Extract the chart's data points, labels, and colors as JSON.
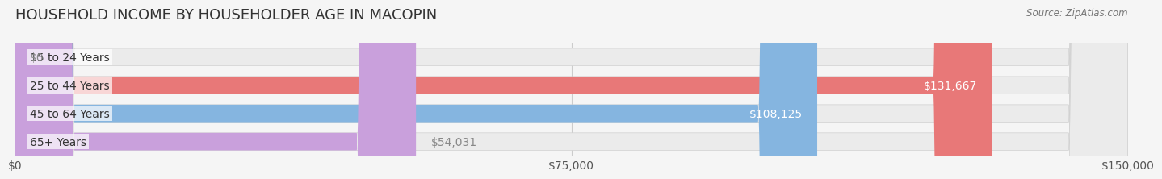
{
  "title": "HOUSEHOLD INCOME BY HOUSEHOLDER AGE IN MACOPIN",
  "source": "Source: ZipAtlas.com",
  "categories": [
    "15 to 24 Years",
    "25 to 44 Years",
    "45 to 64 Years",
    "65+ Years"
  ],
  "values": [
    0,
    131667,
    108125,
    54031
  ],
  "bar_colors": [
    "#f5c9a0",
    "#e87878",
    "#85b5e0",
    "#c9a0dc"
  ],
  "bar_edge_colors": [
    "#e8a870",
    "#d45050",
    "#5090c8",
    "#a870c0"
  ],
  "label_colors": [
    "#888888",
    "#ffffff",
    "#ffffff",
    "#888888"
  ],
  "label_inside": [
    false,
    true,
    true,
    false
  ],
  "xlim": [
    0,
    150000
  ],
  "xticks": [
    0,
    75000,
    150000
  ],
  "xtick_labels": [
    "$0",
    "$75,000",
    "$150,000"
  ],
  "bar_height": 0.62,
  "background_color": "#f5f5f5",
  "bar_background_color": "#ebebeb",
  "title_fontsize": 13,
  "tick_fontsize": 10,
  "label_fontsize": 10,
  "ylabel_fontsize": 10
}
